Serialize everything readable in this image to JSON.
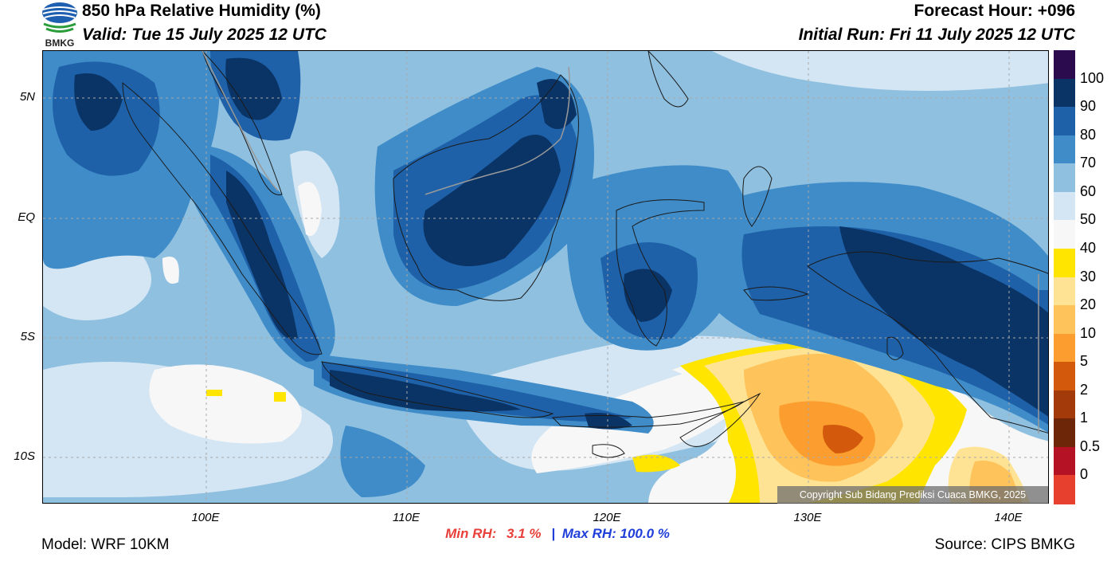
{
  "header": {
    "title": "850 hPa Relative Humidity (%)",
    "valid": "Valid: Tue 15 July 2025 12 UTC",
    "forecast_hour": "Forecast Hour: +096",
    "initial_run": "Initial Run: Fri 11 July 2025 12 UTC",
    "logo_text": "BMKG"
  },
  "axes": {
    "lat_labels": [
      "5N",
      "EQ",
      "5S",
      "10S"
    ],
    "lon_labels": [
      "100E",
      "110E",
      "120E",
      "130E",
      "140E"
    ]
  },
  "colorbar": {
    "labels": [
      "100",
      "90",
      "80",
      "70",
      "60",
      "50",
      "40",
      "30",
      "20",
      "10",
      "5",
      "2",
      "1",
      "0.5",
      "0"
    ],
    "colors": [
      "#2b0a4e",
      "#0b3466",
      "#1e61a8",
      "#3f8cc8",
      "#8fc0e0",
      "#d4e6f3",
      "#f7f7f7",
      "#ffe500",
      "#ffe394",
      "#fec35a",
      "#fc9e2f",
      "#d35a0c",
      "#a33a09",
      "#6e2609",
      "#b51226",
      "#e8402e"
    ]
  },
  "copyright": "Copyright Sub Bidang Prediksi Cuaca BMKG, 2025",
  "stats": {
    "min_label": "Min RH:",
    "min_value": "3.1 %",
    "separator": "|",
    "max_label": "Max RH:",
    "max_value": "100.0 %",
    "min_color": "#e8403a",
    "max_color": "#1f3fd8"
  },
  "footer": {
    "model": "Model: WRF 10KM",
    "source": "Source: CIPS BMKG"
  }
}
